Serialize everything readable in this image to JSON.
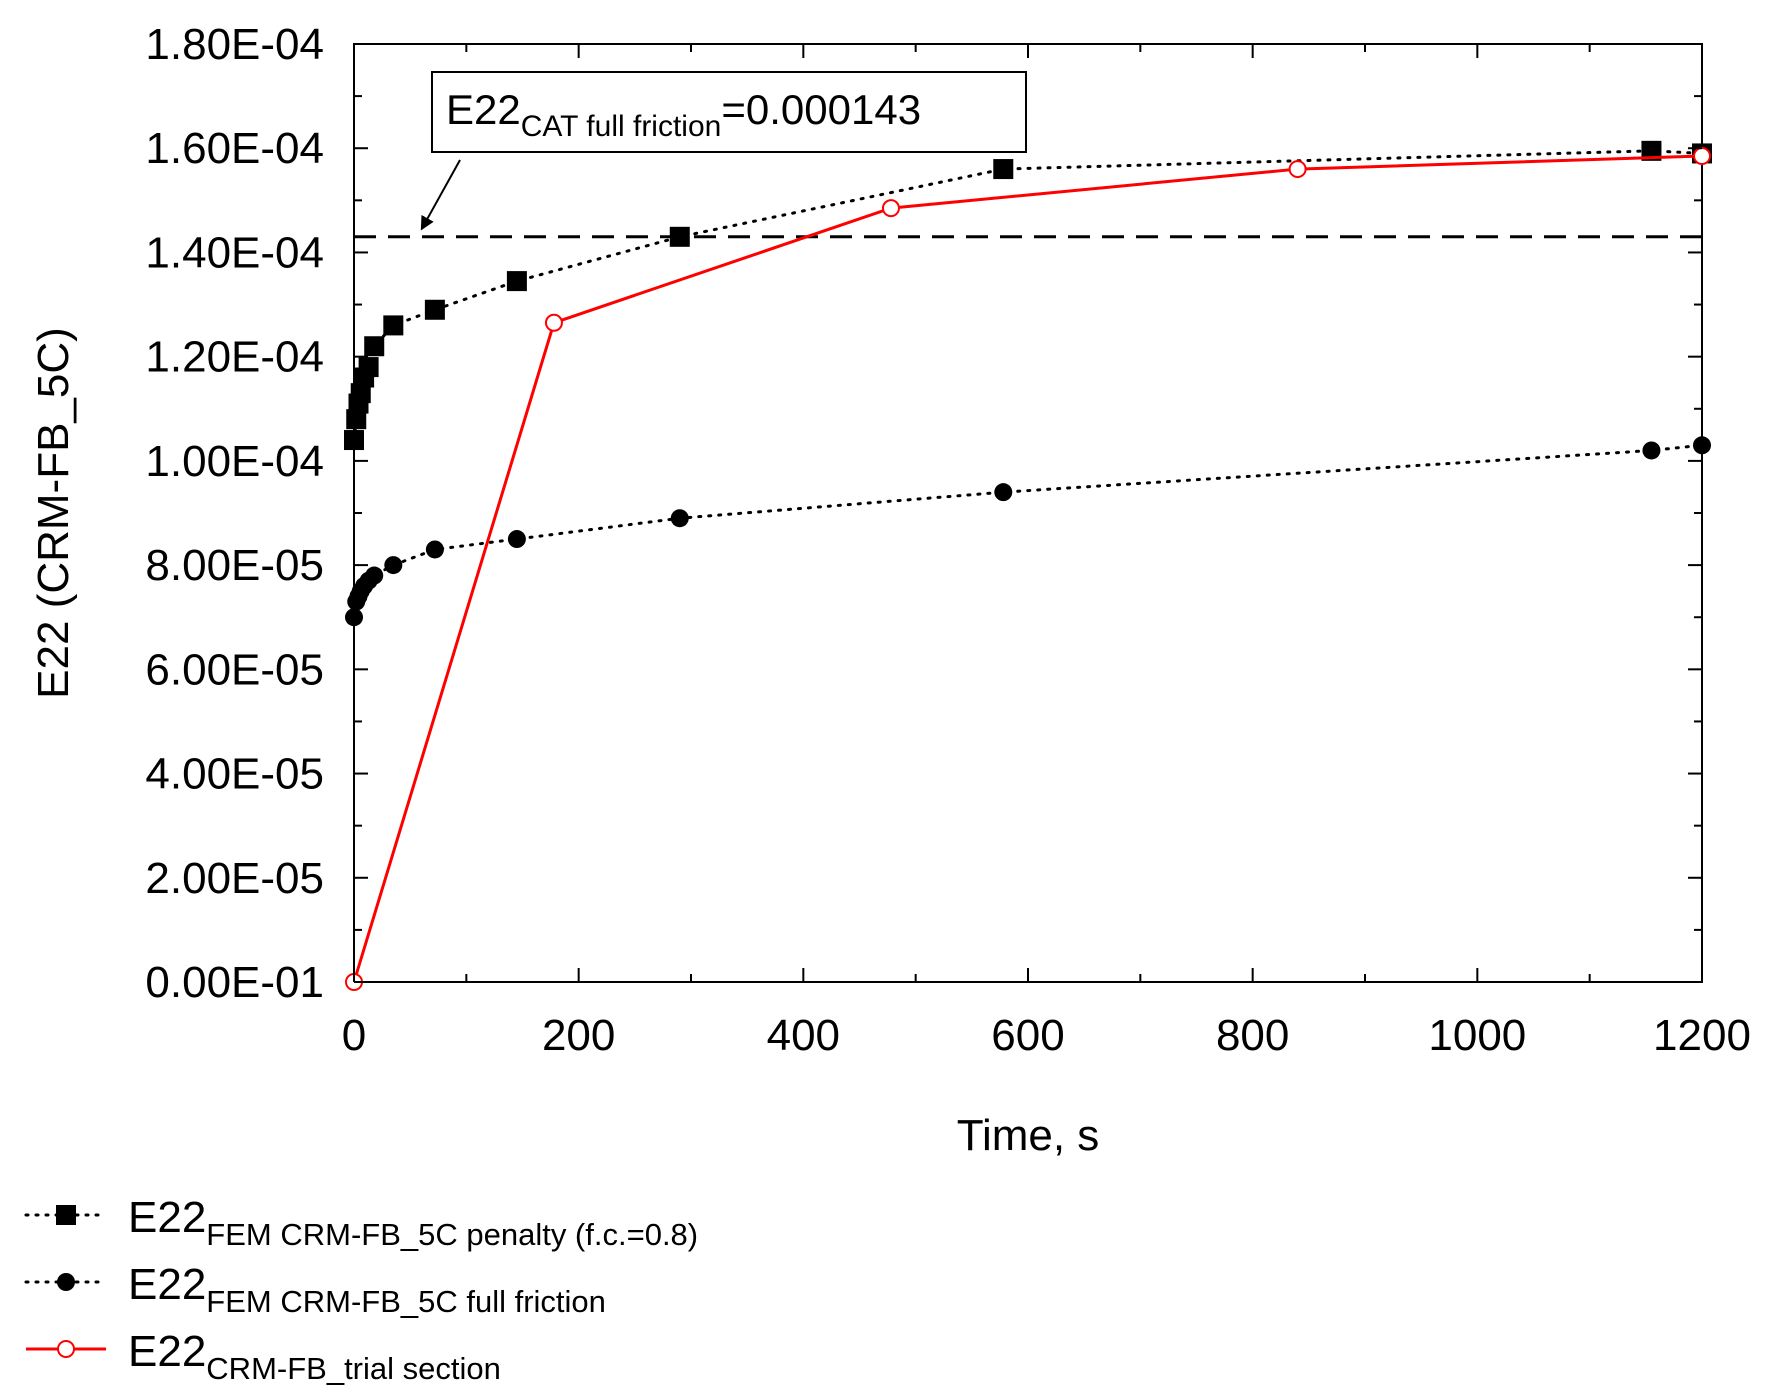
{
  "chart_data": {
    "type": "line",
    "title": "",
    "xlabel": "Time, s",
    "ylabel": "E22 (CRM-FB_5C)",
    "xlim": [
      0,
      1200
    ],
    "ylim": [
      0,
      0.00018
    ],
    "x_ticks": [
      0,
      200,
      400,
      600,
      800,
      1000,
      1200
    ],
    "x_tick_labels": [
      "0",
      "200",
      "400",
      "600",
      "800",
      "1000",
      "1200"
    ],
    "y_ticks": [
      0,
      2e-05,
      4e-05,
      6e-05,
      8e-05,
      0.0001,
      0.00012,
      0.00014,
      0.00016,
      0.00018
    ],
    "y_tick_labels": [
      "0.00E-01",
      "2.00E-05",
      "4.00E-05",
      "6.00E-05",
      "8.00E-05",
      "1.00E-04",
      "1.20E-04",
      "1.40E-04",
      "1.60E-04",
      "1.80E-04"
    ],
    "grid": false,
    "legend_position": "below",
    "series": [
      {
        "name": "E22 FEM CRM-FB_5C penalty (f.c.=0.8)",
        "legend_main": "E22",
        "legend_sub": "FEM CRM-FB_5C penalty (f.c.=0.8)",
        "style": "dotted",
        "marker": "filled-square",
        "color": "#000000",
        "x": [
          0,
          2,
          4,
          6,
          9,
          13,
          18,
          35,
          72,
          145,
          290,
          578,
          1155,
          1200
        ],
        "y": [
          0.000104,
          0.000108,
          0.000111,
          0.000113,
          0.000116,
          0.000118,
          0.000122,
          0.000126,
          0.000129,
          0.0001345,
          0.000143,
          0.000156,
          0.0001595,
          0.000159
        ]
      },
      {
        "name": "E22 FEM CRM-FB_5C full friction",
        "legend_main": "E22",
        "legend_sub": "FEM CRM-FB_5C full friction",
        "style": "dotted",
        "marker": "filled-circle",
        "color": "#000000",
        "x": [
          0,
          2,
          4,
          6,
          9,
          13,
          18,
          35,
          72,
          145,
          290,
          578,
          1155,
          1200
        ],
        "y": [
          7e-05,
          7.3e-05,
          7.4e-05,
          7.5e-05,
          7.6e-05,
          7.7e-05,
          7.8e-05,
          8e-05,
          8.3e-05,
          8.5e-05,
          8.9e-05,
          9.4e-05,
          0.000102,
          0.000103
        ]
      },
      {
        "name": "E22 CRM-FB_trial section",
        "legend_main": "E22",
        "legend_sub": "CRM-FB_trial section",
        "style": "solid",
        "marker": "open-circle",
        "color": "#ff0000",
        "x": [
          0,
          178,
          478,
          840,
          1200
        ],
        "y": [
          0,
          0.0001265,
          0.0001485,
          0.000156,
          0.0001585
        ]
      }
    ],
    "reference_line": {
      "y": 0.000143,
      "style": "dashed",
      "color": "#000000"
    },
    "annotation": {
      "main": "E22",
      "sub": "CAT full friction",
      "value_text": "=0.000143",
      "points_to": {
        "x": 55,
        "y": 0.000143
      }
    }
  }
}
